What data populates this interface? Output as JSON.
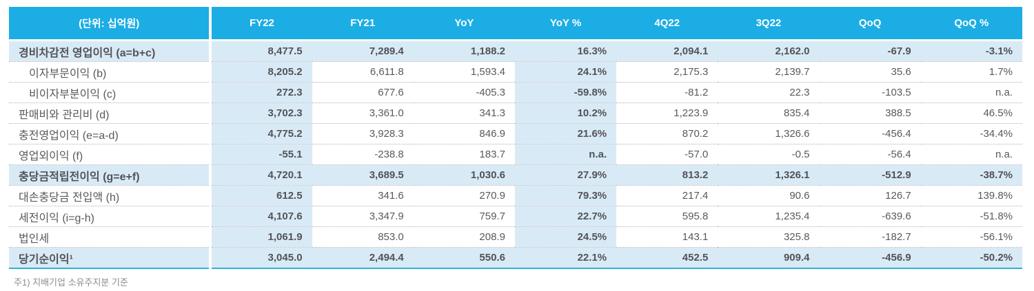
{
  "table": {
    "unit_label": "(단위: 십억원)",
    "columns": [
      "FY22",
      "FY21",
      "YoY",
      "YoY %",
      "4Q22",
      "3Q22",
      "QoQ",
      "QoQ %"
    ],
    "rows": [
      {
        "label": "경비차감전 영업이익 (a=b+c)",
        "level": 0,
        "emphasis": true,
        "values": [
          "8,477.5",
          "7,289.4",
          "1,188.2",
          "16.3%",
          "2,094.1",
          "2,162.0",
          "-67.9",
          "-3.1%"
        ]
      },
      {
        "label": "이자부문이익 (b)",
        "level": 1,
        "emphasis": false,
        "values": [
          "8,205.2",
          "6,611.8",
          "1,593.4",
          "24.1%",
          "2,175.3",
          "2,139.7",
          "35.6",
          "1.7%"
        ]
      },
      {
        "label": "비이자부분이익 (c)",
        "level": 1,
        "emphasis": false,
        "values": [
          "272.3",
          "677.6",
          "-405.3",
          "-59.8%",
          "-81.2",
          "22.3",
          "-103.5",
          "n.a."
        ]
      },
      {
        "label": "판매비와 관리비 (d)",
        "level": 0,
        "emphasis": false,
        "values": [
          "3,702.3",
          "3,361.0",
          "341.3",
          "10.2%",
          "1,223.9",
          "835.4",
          "388.5",
          "46.5%"
        ]
      },
      {
        "label": "충전영업이익 (e=a-d)",
        "level": 0,
        "emphasis": false,
        "values": [
          "4,775.2",
          "3,928.3",
          "846.9",
          "21.6%",
          "870.2",
          "1,326.6",
          "-456.4",
          "-34.4%"
        ]
      },
      {
        "label": "영업외이익 (f)",
        "level": 0,
        "emphasis": false,
        "values": [
          "-55.1",
          "-238.8",
          "183.7",
          "n.a.",
          "-57.0",
          "-0.5",
          "-56.4",
          "n.a."
        ]
      },
      {
        "label": "충당금적립전이익 (g=e+f)",
        "level": 0,
        "emphasis": true,
        "values": [
          "4,720.1",
          "3,689.5",
          "1,030.6",
          "27.9%",
          "813.2",
          "1,326.1",
          "-512.9",
          "-38.7%"
        ]
      },
      {
        "label": "대손충당금 전입액 (h)",
        "level": 0,
        "emphasis": false,
        "values": [
          "612.5",
          "341.6",
          "270.9",
          "79.3%",
          "217.4",
          "90.6",
          "126.7",
          "139.8%"
        ]
      },
      {
        "label": "세전이익 (i=g-h)",
        "level": 0,
        "emphasis": false,
        "values": [
          "4,107.6",
          "3,347.9",
          "759.7",
          "22.7%",
          "595.8",
          "1,235.4",
          "-639.6",
          "-51.8%"
        ]
      },
      {
        "label": "법인세",
        "level": 0,
        "emphasis": false,
        "values": [
          "1,061.9",
          "853.0",
          "208.9",
          "24.5%",
          "143.1",
          "325.8",
          "-182.7",
          "-56.1%"
        ]
      },
      {
        "label": "당기순이익¹",
        "level": 0,
        "emphasis": true,
        "values": [
          "3,045.0",
          "2,494.4",
          "550.6",
          "22.1%",
          "452.5",
          "909.4",
          "-456.9",
          "-50.2%"
        ]
      }
    ]
  },
  "footnote": "주1) 지배기업 소유주지분 기준",
  "colors": {
    "header_bg": "#1CADE4",
    "tint_bg": "#D9EAF7",
    "bottom_border": "#2AB2D4",
    "body_text": "#58595B",
    "footnote_text": "#8C8C8E"
  }
}
